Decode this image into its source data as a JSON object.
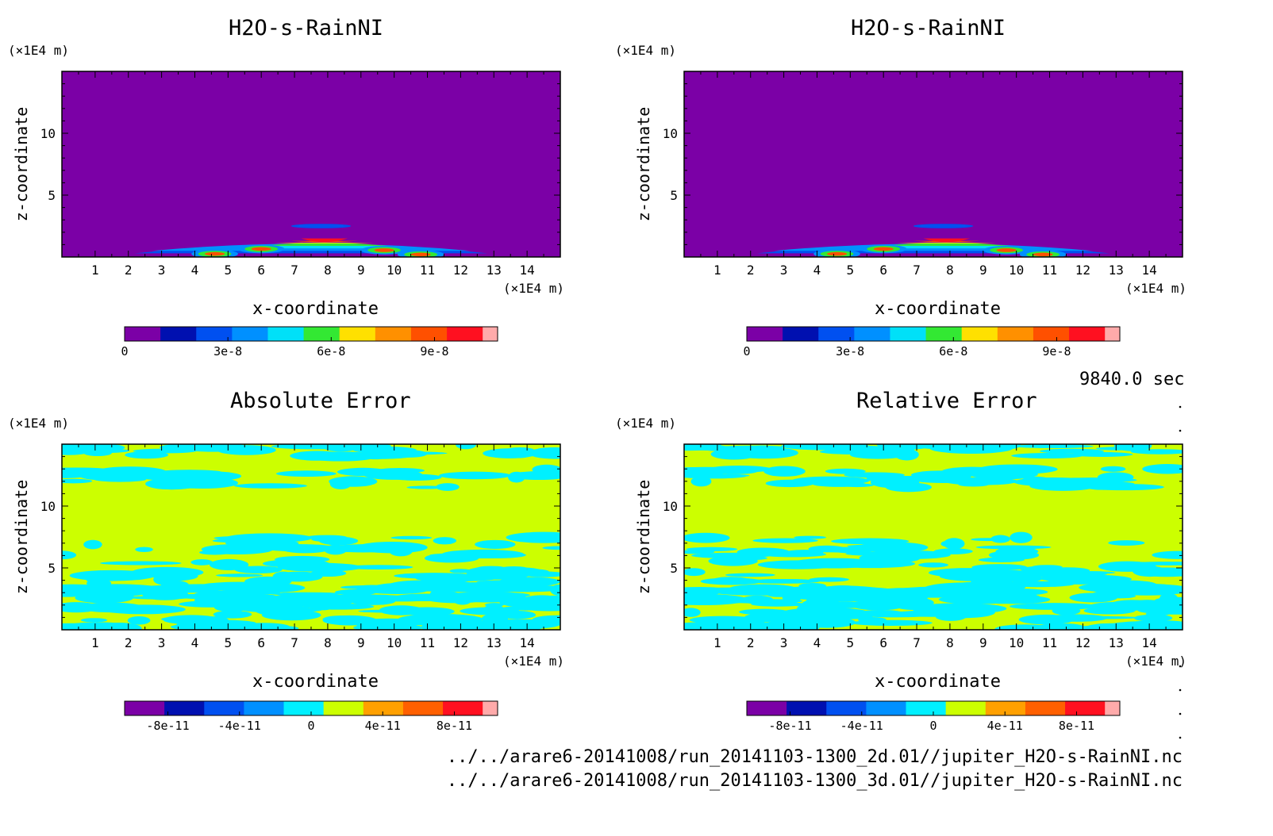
{
  "chart_data": [
    {
      "type": "heatmap",
      "title": "H2O-s-RainNI",
      "xlabel": "x-coordinate",
      "ylabel": "z-coordinate",
      "x_unit": "(×1E4 m)",
      "y_unit": "(×1E4 m)",
      "xlim": [
        0,
        15
      ],
      "ylim": [
        0,
        15
      ],
      "x_ticks": [
        "1",
        "2",
        "3",
        "4",
        "5",
        "6",
        "7",
        "8",
        "9",
        "10",
        "11",
        "12",
        "13",
        "14"
      ],
      "y_ticks": [
        "5",
        "10"
      ],
      "colorbar_ticks": [
        "0",
        "3e-8",
        "6e-8",
        "9e-8"
      ],
      "colorbar_range": [
        0,
        1.04e-07
      ],
      "background_level": 0,
      "features": [
        {
          "shape": "arc",
          "x_from": 2.2,
          "x_to": 12.8,
          "z_peak": 1.7,
          "z_edge": 0.3,
          "max_value": 9e-08
        }
      ]
    },
    {
      "type": "heatmap",
      "title": "H2O-s-RainNI",
      "xlabel": "x-coordinate",
      "ylabel": "z-coordinate",
      "x_unit": "(×1E4 m)",
      "y_unit": "(×1E4 m)",
      "xlim": [
        0,
        15
      ],
      "ylim": [
        0,
        15
      ],
      "x_ticks": [
        "1",
        "2",
        "3",
        "4",
        "5",
        "6",
        "7",
        "8",
        "9",
        "10",
        "11",
        "12",
        "13",
        "14"
      ],
      "y_ticks": [
        "5",
        "10"
      ],
      "colorbar_ticks": [
        "0",
        "3e-8",
        "6e-8",
        "9e-8"
      ],
      "colorbar_range": [
        0,
        1.04e-07
      ],
      "background_level": 0,
      "features": [
        {
          "shape": "arc",
          "x_from": 2.2,
          "x_to": 12.8,
          "z_peak": 1.7,
          "z_edge": 0.3,
          "max_value": 9e-08
        }
      ]
    },
    {
      "type": "heatmap",
      "title": "Absolute Error",
      "xlabel": "x-coordinate",
      "ylabel": "z-coordinate",
      "x_unit": "(×1E4 m)",
      "y_unit": "(×1E4 m)",
      "xlim": [
        0,
        15
      ],
      "ylim": [
        0,
        15
      ],
      "x_ticks": [
        "1",
        "2",
        "3",
        "4",
        "5",
        "6",
        "7",
        "8",
        "9",
        "10",
        "11",
        "12",
        "13",
        "14"
      ],
      "y_ticks": [
        "5",
        "10"
      ],
      "colorbar_ticks": [
        "-8e-11",
        "-4e-11",
        "0",
        "4e-11",
        "8e-11"
      ],
      "colorbar_range": [
        -1e-10,
        1e-10
      ],
      "background_level": 5,
      "features": [
        {
          "shape": "patches",
          "level": 4
        }
      ]
    },
    {
      "type": "heatmap",
      "title": "Relative Error",
      "xlabel": "x-coordinate",
      "ylabel": "z-coordinate",
      "x_unit": "(×1E4 m)",
      "y_unit": "(×1E4 m)",
      "xlim": [
        0,
        15
      ],
      "ylim": [
        0,
        15
      ],
      "x_ticks": [
        "1",
        "2",
        "3",
        "4",
        "5",
        "6",
        "7",
        "8",
        "9",
        "10",
        "11",
        "12",
        "13",
        "14"
      ],
      "y_ticks": [
        "5",
        "10"
      ],
      "colorbar_ticks": [
        "-8e-11",
        "-4e-11",
        "0",
        "4e-11",
        "8e-11"
      ],
      "colorbar_range": [
        -1e-10,
        1e-10
      ],
      "background_level": 5,
      "features": [
        {
          "shape": "patches",
          "level": 4
        }
      ]
    }
  ],
  "colormaps": {
    "positive": [
      "#7b00a6",
      "#0010b0",
      "#0050f0",
      "#0090ff",
      "#00e0f8",
      "#33e833",
      "#ffe000",
      "#ff9000",
      "#ff5000",
      "#ff1020",
      "#ffaaaa"
    ],
    "error": [
      "#7b00a6",
      "#0010b0",
      "#0050f0",
      "#0090ff",
      "#00f0ff",
      "#ccff00",
      "#ffa000",
      "#ff6000",
      "#ff1020",
      "#ffaaaa"
    ]
  },
  "time_label": "9840.0 sec",
  "files": [
    "../../arare6-20141008/run_20141103-1300_2d.01//jupiter_H2O-s-RainNI.nc",
    "../../arare6-20141008/run_20141103-1300_3d.01//jupiter_H2O-s-RainNI.nc"
  ]
}
